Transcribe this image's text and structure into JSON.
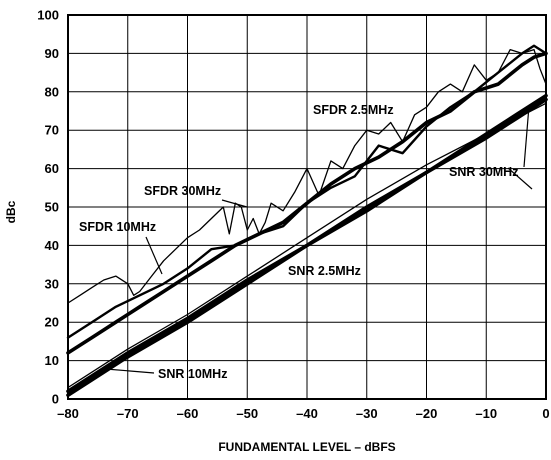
{
  "chart_data": {
    "type": "line",
    "xlabel": "FUNDAMENTAL LEVEL – dBFS",
    "ylabel": "dBc",
    "xlim": [
      -80,
      0
    ],
    "ylim": [
      0,
      100
    ],
    "x_ticks": [
      "–80",
      "–70",
      "–60",
      "–50",
      "–40",
      "–30",
      "–20",
      "–10",
      "0"
    ],
    "y_ticks": [
      "0",
      "10",
      "20",
      "30",
      "40",
      "50",
      "60",
      "70",
      "80",
      "90",
      "100"
    ],
    "grid": true,
    "annotations": [
      "SFDR 2.5MHz",
      "SFDR 30MHz",
      "SFDR 10MHz",
      "SNR 30MHz",
      "SNR 2.5MHz",
      "SNR 10MHz"
    ],
    "series": [
      {
        "name": "SFDR 30MHz",
        "line": "thin",
        "x": [
          -80,
          -78,
          -76,
          -74,
          -72,
          -70,
          -69,
          -68,
          -66,
          -64,
          -62,
          -60,
          -58,
          -56,
          -54,
          -53,
          -52,
          -51,
          -50,
          -49,
          -48,
          -47,
          -46,
          -44,
          -42,
          -40,
          -38,
          -36,
          -34,
          -32,
          -30,
          -28,
          -26,
          -24,
          -22,
          -20,
          -18,
          -16,
          -14,
          -12,
          -10,
          -8,
          -6,
          -4,
          -2,
          -1,
          0
        ],
        "y": [
          25,
          27,
          29,
          31,
          32,
          30,
          27,
          28,
          32,
          36,
          39,
          42,
          44,
          47,
          50,
          43,
          51,
          50,
          44,
          47,
          43,
          46,
          51,
          49,
          54,
          60,
          53,
          62,
          60,
          66,
          70,
          69,
          72,
          67,
          74,
          76,
          80,
          82,
          80,
          87,
          83,
          85,
          91,
          90,
          91,
          86,
          82
        ]
      },
      {
        "name": "SFDR 10MHz",
        "line": "medium",
        "x": [
          -80,
          -76,
          -72,
          -68,
          -64,
          -60,
          -56,
          -52,
          -48,
          -44,
          -40,
          -36,
          -32,
          -28,
          -24,
          -20,
          -16,
          -12,
          -8,
          -4,
          -2,
          0
        ],
        "y": [
          16,
          20,
          24,
          27,
          30,
          34,
          39,
          40,
          43,
          45,
          51,
          55,
          58,
          66,
          64,
          71,
          76,
          80,
          85,
          90,
          92,
          90
        ]
      },
      {
        "name": "SFDR 2.5MHz",
        "line": "thick",
        "x": [
          -80,
          -76,
          -72,
          -68,
          -64,
          -60,
          -56,
          -52,
          -48,
          -44,
          -40,
          -36,
          -32,
          -28,
          -24,
          -20,
          -16,
          -12,
          -8,
          -4,
          -2,
          0
        ],
        "y": [
          12,
          16,
          20,
          24,
          28,
          32,
          36,
          40,
          43,
          46,
          51,
          56,
          60,
          63,
          67,
          72,
          75,
          80,
          82,
          87,
          89,
          90
        ]
      },
      {
        "name": "SNR 30MHz",
        "line": "thin",
        "x": [
          -80,
          -70,
          -60,
          -50,
          -40,
          -30,
          -20,
          -10,
          -5,
          0
        ],
        "y": [
          3,
          13,
          22,
          32,
          42,
          52,
          61,
          69,
          73,
          77
        ]
      },
      {
        "name": "SNR 2.5MHz",
        "line": "thick",
        "x": [
          -80,
          -70,
          -60,
          -50,
          -40,
          -30,
          -20,
          -10,
          -5,
          0
        ],
        "y": [
          2,
          12,
          21,
          31,
          40,
          50,
          59,
          69,
          74,
          79
        ]
      },
      {
        "name": "SNR 10MHz",
        "line": "thick",
        "x": [
          -80,
          -70,
          -60,
          -50,
          -40,
          -30,
          -20,
          -10,
          -5,
          0
        ],
        "y": [
          1,
          11,
          20,
          30,
          40,
          49,
          59,
          68,
          73,
          78
        ]
      }
    ]
  }
}
